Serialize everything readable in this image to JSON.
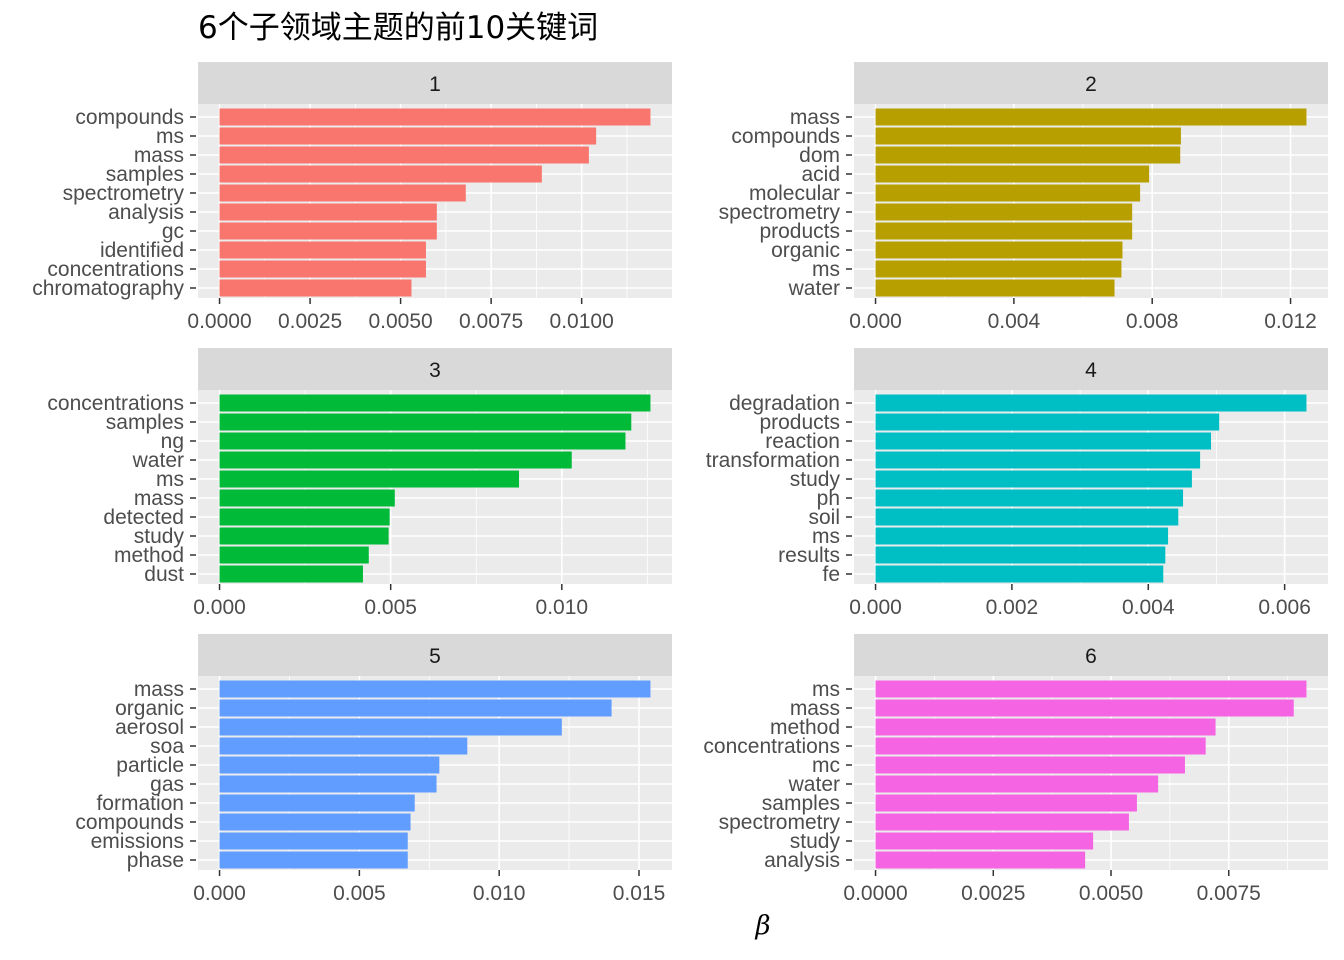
{
  "chart_data": {
    "type": "bar",
    "orientation": "horizontal",
    "title": "6个子领域主题的前10关键词",
    "xlabel": "β",
    "ylabel": "",
    "grid": true,
    "facets": [
      {
        "label": "1",
        "color": "#F8766D",
        "ticks": [
          0,
          0.0025,
          0.005,
          0.0075,
          0.01
        ],
        "tick_labels": [
          "0.0000",
          "0.0025",
          "0.0050",
          "0.0075",
          "0.0100"
        ],
        "terms": [
          "compounds",
          "ms",
          "mass",
          "samples",
          "spectrometry",
          "analysis",
          "gc",
          "identified",
          "concentrations",
          "chromatography"
        ],
        "values": [
          0.0119,
          0.0104,
          0.0102,
          0.0089,
          0.0068,
          0.006,
          0.006,
          0.0057,
          0.0057,
          0.0053
        ]
      },
      {
        "label": "2",
        "color": "#B79F00",
        "ticks": [
          0,
          0.004,
          0.008,
          0.012
        ],
        "tick_labels": [
          "0.000",
          "0.004",
          "0.008",
          "0.012"
        ],
        "terms": [
          "mass",
          "compounds",
          "dom",
          "acid",
          "molecular",
          "spectrometry",
          "products",
          "organic",
          "ms",
          "water"
        ],
        "values": [
          0.01246,
          0.00883,
          0.00881,
          0.00791,
          0.00765,
          0.00742,
          0.00742,
          0.00714,
          0.00711,
          0.00691
        ]
      },
      {
        "label": "3",
        "color": "#00BA38",
        "ticks": [
          0,
          0.005,
          0.01
        ],
        "tick_labels": [
          "0.000",
          "0.005",
          "0.010"
        ],
        "terms": [
          "concentrations",
          "samples",
          "ng",
          "water",
          "ms",
          "mass",
          "detected",
          "study",
          "method",
          "dust"
        ],
        "values": [
          0.01259,
          0.01203,
          0.01186,
          0.01029,
          0.00875,
          0.00512,
          0.00497,
          0.00494,
          0.00436,
          0.00419
        ]
      },
      {
        "label": "4",
        "color": "#00BFC4",
        "ticks": [
          0,
          0.002,
          0.004,
          0.006
        ],
        "tick_labels": [
          "0.000",
          "0.002",
          "0.004",
          "0.006"
        ],
        "terms": [
          "degradation",
          "products",
          "reaction",
          "transformation",
          "study",
          "ph",
          "soil",
          "ms",
          "results",
          "fe"
        ],
        "values": [
          0.00632,
          0.00504,
          0.00492,
          0.00476,
          0.00464,
          0.00451,
          0.00444,
          0.00429,
          0.00425,
          0.00422
        ]
      },
      {
        "label": "5",
        "color": "#619CFF",
        "ticks": [
          0,
          0.005,
          0.01,
          0.015
        ],
        "tick_labels": [
          "0.000",
          "0.005",
          "0.010",
          "0.015"
        ],
        "terms": [
          "mass",
          "organic",
          "aerosol",
          "soa",
          "particle",
          "gas",
          "formation",
          "compounds",
          "emissions",
          "phase"
        ],
        "values": [
          0.01541,
          0.01402,
          0.01224,
          0.00886,
          0.00786,
          0.00776,
          0.00698,
          0.00683,
          0.00673,
          0.00673
        ]
      },
      {
        "label": "6",
        "color": "#F564E3",
        "ticks": [
          0,
          0.0025,
          0.005,
          0.0075
        ],
        "tick_labels": [
          "0.0000",
          "0.0025",
          "0.0050",
          "0.0075"
        ],
        "terms": [
          "ms",
          "mass",
          "method",
          "concentrations",
          "mc",
          "water",
          "samples",
          "spectrometry",
          "study",
          "analysis"
        ],
        "values": [
          0.00915,
          0.00888,
          0.00722,
          0.00701,
          0.00657,
          0.006,
          0.00555,
          0.00538,
          0.00462,
          0.00445
        ]
      }
    ]
  }
}
